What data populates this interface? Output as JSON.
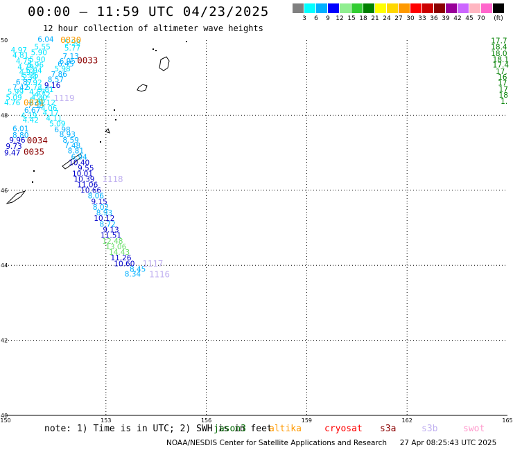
{
  "title": "00:00 – 11:59 UTC 04/23/2025",
  "subtitle": "12 hour collection of altimeter wave heights",
  "legend": {
    "unit": "(ft)",
    "colors": [
      "#808080",
      "#00ffff",
      "#00b0ff",
      "#0000ff",
      "#90ee90",
      "#32cd32",
      "#008000",
      "#ffff00",
      "#ffd700",
      "#ff9900",
      "#ff0000",
      "#cc0000",
      "#8b0000",
      "#990099",
      "#cc66ff",
      "#ffb6c1",
      "#ff66cc",
      "#000000"
    ],
    "labels": [
      "3",
      "6",
      "9",
      "12",
      "15",
      "18",
      "21",
      "24",
      "27",
      "30",
      "33",
      "36",
      "39",
      "42",
      "45",
      "70"
    ]
  },
  "map": {
    "lon_range": [
      150,
      165
    ],
    "lat_range": [
      40,
      50
    ],
    "lon_ticks": [
      "150",
      "153",
      "156",
      "159",
      "162",
      "165"
    ],
    "lat_ticks": [
      "50",
      "48",
      "46",
      "44",
      "42",
      "40"
    ]
  },
  "wave_labels": [
    {
      "text": "6.04",
      "lon": 151.2,
      "lat": 49.95,
      "color": "#00b0ff"
    },
    {
      "text": "5.98",
      "lon": 152.0,
      "lat": 49.87,
      "color": "#00e5ff"
    },
    {
      "text": "5.55",
      "lon": 151.1,
      "lat": 49.75,
      "color": "#00e5ff"
    },
    {
      "text": "5.77",
      "lon": 152.0,
      "lat": 49.72,
      "color": "#00e5ff"
    },
    {
      "text": "4.97",
      "lon": 150.4,
      "lat": 49.67,
      "color": "#00e5ff"
    },
    {
      "text": "5.90",
      "lon": 151.0,
      "lat": 49.6,
      "color": "#00e5ff"
    },
    {
      "text": "4.81",
      "lon": 150.45,
      "lat": 49.53,
      "color": "#00e5ff"
    },
    {
      "text": "7.13",
      "lon": 151.95,
      "lat": 49.5,
      "color": "#00b0ff"
    },
    {
      "text": "5.90",
      "lon": 150.95,
      "lat": 49.42,
      "color": "#00e5ff"
    },
    {
      "text": "4.75",
      "lon": 150.55,
      "lat": 49.37,
      "color": "#00e5ff"
    },
    {
      "text": "6.95",
      "lon": 151.85,
      "lat": 49.37,
      "color": "#00b0ff"
    },
    {
      "text": "5.96",
      "lon": 150.9,
      "lat": 49.27,
      "color": "#00e5ff"
    },
    {
      "text": "6.45",
      "lon": 151.8,
      "lat": 49.3,
      "color": "#00b0ff"
    },
    {
      "text": "4.79",
      "lon": 150.6,
      "lat": 49.22,
      "color": "#00e5ff"
    },
    {
      "text": "5.98",
      "lon": 151.7,
      "lat": 49.17,
      "color": "#00e5ff"
    },
    {
      "text": "5.94",
      "lon": 150.85,
      "lat": 49.12,
      "color": "#00e5ff"
    },
    {
      "text": "4.94",
      "lon": 150.65,
      "lat": 49.08,
      "color": "#00e5ff"
    },
    {
      "text": "7.86",
      "lon": 151.6,
      "lat": 49.02,
      "color": "#00b0ff"
    },
    {
      "text": "5.35",
      "lon": 150.75,
      "lat": 48.99,
      "color": "#00e5ff"
    },
    {
      "text": "5.34",
      "lon": 150.7,
      "lat": 48.94,
      "color": "#00e5ff"
    },
    {
      "text": "8.57",
      "lon": 151.5,
      "lat": 48.88,
      "color": "#00b0ff"
    },
    {
      "text": "6.87",
      "lon": 150.55,
      "lat": 48.82,
      "color": "#00b0ff"
    },
    {
      "text": "5.92",
      "lon": 150.85,
      "lat": 48.8,
      "color": "#00e5ff"
    },
    {
      "text": "9.16",
      "lon": 151.4,
      "lat": 48.73,
      "color": "#0000cc"
    },
    {
      "text": "7.42",
      "lon": 150.45,
      "lat": 48.67,
      "color": "#00b0ff"
    },
    {
      "text": "5.73",
      "lon": 150.85,
      "lat": 48.67,
      "color": "#00e5ff"
    },
    {
      "text": "5.81",
      "lon": 151.2,
      "lat": 48.62,
      "color": "#00e5ff"
    },
    {
      "text": "5.99",
      "lon": 150.3,
      "lat": 48.55,
      "color": "#00e5ff"
    },
    {
      "text": "4.57",
      "lon": 150.95,
      "lat": 48.55,
      "color": "#00e5ff"
    },
    {
      "text": "4.72",
      "lon": 151.1,
      "lat": 48.48,
      "color": "#00e5ff"
    },
    {
      "text": "5.09",
      "lon": 150.25,
      "lat": 48.4,
      "color": "#00e5ff"
    },
    {
      "text": "4.30",
      "lon": 151.0,
      "lat": 48.4,
      "color": "#00e5ff"
    },
    {
      "text": "5.45",
      "lon": 150.95,
      "lat": 48.32,
      "color": "#00e5ff"
    },
    {
      "text": "4.76",
      "lon": 150.2,
      "lat": 48.27,
      "color": "#00e5ff"
    },
    {
      "text": "5.92",
      "lon": 150.95,
      "lat": 48.27,
      "color": "#00e5ff"
    },
    {
      "text": "4.12",
      "lon": 151.25,
      "lat": 48.27,
      "color": "#00e5ff"
    },
    {
      "text": "7.58",
      "lon": 150.9,
      "lat": 48.19,
      "color": "#00b0ff"
    },
    {
      "text": "4.06",
      "lon": 151.3,
      "lat": 48.12,
      "color": "#00e5ff"
    },
    {
      "text": "6.67",
      "lon": 150.8,
      "lat": 48.06,
      "color": "#00b0ff"
    },
    {
      "text": "4.17",
      "lon": 151.35,
      "lat": 47.99,
      "color": "#00e5ff"
    },
    {
      "text": "4.19",
      "lon": 150.7,
      "lat": 47.92,
      "color": "#00e5ff"
    },
    {
      "text": "4.11",
      "lon": 151.45,
      "lat": 47.85,
      "color": "#00e5ff"
    },
    {
      "text": "4.42",
      "lon": 150.75,
      "lat": 47.8,
      "color": "#00e5ff"
    },
    {
      "text": "5.09",
      "lon": 151.55,
      "lat": 47.7,
      "color": "#00e5ff"
    },
    {
      "text": "6.01",
      "lon": 150.45,
      "lat": 47.57,
      "color": "#00b0ff"
    },
    {
      "text": "6.98",
      "lon": 151.7,
      "lat": 47.55,
      "color": "#00b0ff"
    },
    {
      "text": "8.80",
      "lon": 150.45,
      "lat": 47.4,
      "color": "#00b0ff"
    },
    {
      "text": "8.93",
      "lon": 151.85,
      "lat": 47.42,
      "color": "#00b0ff"
    },
    {
      "text": "9.96",
      "lon": 150.35,
      "lat": 47.27,
      "color": "#0000cc"
    },
    {
      "text": "8.59",
      "lon": 151.95,
      "lat": 47.27,
      "color": "#00b0ff"
    },
    {
      "text": "9.73",
      "lon": 150.25,
      "lat": 47.1,
      "color": "#0000cc"
    },
    {
      "text": "7.48",
      "lon": 152.0,
      "lat": 47.12,
      "color": "#00b0ff"
    },
    {
      "text": "9.47",
      "lon": 150.2,
      "lat": 46.93,
      "color": "#0000cc"
    },
    {
      "text": "8.81",
      "lon": 152.1,
      "lat": 46.98,
      "color": "#00b0ff"
    },
    {
      "text": "6.94",
      "lon": 152.2,
      "lat": 46.82,
      "color": "#00b0ff"
    },
    {
      "text": "10.40",
      "lon": 152.2,
      "lat": 46.67,
      "color": "#0000cc"
    },
    {
      "text": "9.55",
      "lon": 152.4,
      "lat": 46.52,
      "color": "#0000cc"
    },
    {
      "text": "10.01",
      "lon": 152.3,
      "lat": 46.37,
      "color": "#0000cc"
    },
    {
      "text": "10.39",
      "lon": 152.35,
      "lat": 46.23,
      "color": "#0000cc"
    },
    {
      "text": "11.06",
      "lon": 152.45,
      "lat": 46.08,
      "color": "#0000cc"
    },
    {
      "text": "10.66",
      "lon": 152.55,
      "lat": 45.93,
      "color": "#0000cc"
    },
    {
      "text": "8.06",
      "lon": 152.7,
      "lat": 45.78,
      "color": "#00b0ff"
    },
    {
      "text": "9.15",
      "lon": 152.8,
      "lat": 45.63,
      "color": "#0000cc"
    },
    {
      "text": "8.02",
      "lon": 152.85,
      "lat": 45.48,
      "color": "#00b0ff"
    },
    {
      "text": "8.93",
      "lon": 152.95,
      "lat": 45.33,
      "color": "#00b0ff"
    },
    {
      "text": "10.12",
      "lon": 152.95,
      "lat": 45.18,
      "color": "#0000cc"
    },
    {
      "text": "8.72",
      "lon": 153.05,
      "lat": 45.03,
      "color": "#00b0ff"
    },
    {
      "text": "9.13",
      "lon": 153.15,
      "lat": 44.88,
      "color": "#0000cc"
    },
    {
      "text": "11.51",
      "lon": 153.15,
      "lat": 44.73,
      "color": "#0000cc"
    },
    {
      "text": "12.48",
      "lon": 153.2,
      "lat": 44.58,
      "color": "#66dd66"
    },
    {
      "text": "13.06",
      "lon": 153.3,
      "lat": 44.43,
      "color": "#66dd66"
    },
    {
      "text": "14.43",
      "lon": 153.4,
      "lat": 44.28,
      "color": "#66dd66"
    },
    {
      "text": "11.26",
      "lon": 153.45,
      "lat": 44.13,
      "color": "#0000cc"
    },
    {
      "text": "10.60",
      "lon": 153.55,
      "lat": 43.98,
      "color": "#0000cc"
    },
    {
      "text": "8.45",
      "lon": 153.95,
      "lat": 43.83,
      "color": "#00b0ff"
    },
    {
      "text": "8.34",
      "lon": 153.8,
      "lat": 43.7,
      "color": "#00b0ff"
    },
    {
      "text": "17.7",
      "lon": 164.75,
      "lat": 49.92,
      "color": "#008000"
    },
    {
      "text": "18.4",
      "lon": 164.75,
      "lat": 49.75,
      "color": "#008000"
    },
    {
      "text": "18.0",
      "lon": 164.75,
      "lat": 49.58,
      "color": "#008000"
    },
    {
      "text": "18.1",
      "lon": 164.8,
      "lat": 49.42,
      "color": "#008000"
    },
    {
      "text": "17.4",
      "lon": 164.8,
      "lat": 49.27,
      "color": "#008000"
    },
    {
      "text": "17.",
      "lon": 164.82,
      "lat": 49.1,
      "color": "#008000"
    },
    {
      "text": "16",
      "lon": 164.85,
      "lat": 48.95,
      "color": "#008000"
    },
    {
      "text": "17",
      "lon": 164.85,
      "lat": 48.79,
      "color": "#008000"
    },
    {
      "text": "17",
      "lon": 164.88,
      "lat": 48.63,
      "color": "#008000"
    },
    {
      "text": "18",
      "lon": 164.88,
      "lat": 48.47,
      "color": "#008000"
    },
    {
      "text": "1.",
      "lon": 164.9,
      "lat": 48.3,
      "color": "#008000"
    }
  ],
  "pass_times": [
    {
      "text": "0830",
      "lon": 151.95,
      "lat": 49.93,
      "color": "#ff9900"
    },
    {
      "text": "0033",
      "lon": 152.45,
      "lat": 49.38,
      "color": "#8b0000"
    },
    {
      "text": "1119",
      "lon": 151.75,
      "lat": 48.38,
      "color": "#c0b0f0"
    },
    {
      "text": "0831",
      "lon": 150.85,
      "lat": 48.26,
      "color": "#ff9900"
    },
    {
      "text": "0034",
      "lon": 150.95,
      "lat": 47.25,
      "color": "#8b0000"
    },
    {
      "text": "0035",
      "lon": 150.85,
      "lat": 46.95,
      "color": "#8b0000"
    },
    {
      "text": "1118",
      "lon": 153.2,
      "lat": 46.22,
      "color": "#c0b0f0"
    },
    {
      "text": "1117",
      "lon": 154.4,
      "lat": 43.97,
      "color": "#c0b0f0"
    },
    {
      "text": "1116",
      "lon": 154.6,
      "lat": 43.68,
      "color": "#c0b0f0"
    }
  ],
  "note": {
    "text": "note: 1) Time is in UTC; 2) SWH is in feet",
    "satellites": [
      {
        "name": "jason3",
        "color": "#006600"
      },
      {
        "name": "altika",
        "color": "#ff9900"
      },
      {
        "name": "cryosat",
        "color": "#ff0000"
      },
      {
        "name": "s3a",
        "color": "#8b0000"
      },
      {
        "name": "s3b",
        "color": "#c0b0f0"
      },
      {
        "name": "swot",
        "color": "#ff99cc"
      }
    ]
  },
  "footer": {
    "credit": "NOAA/NESDIS Center for Satellite Applications and Research",
    "timestamp": "27 Apr 08:25:43 UTC 2025"
  }
}
